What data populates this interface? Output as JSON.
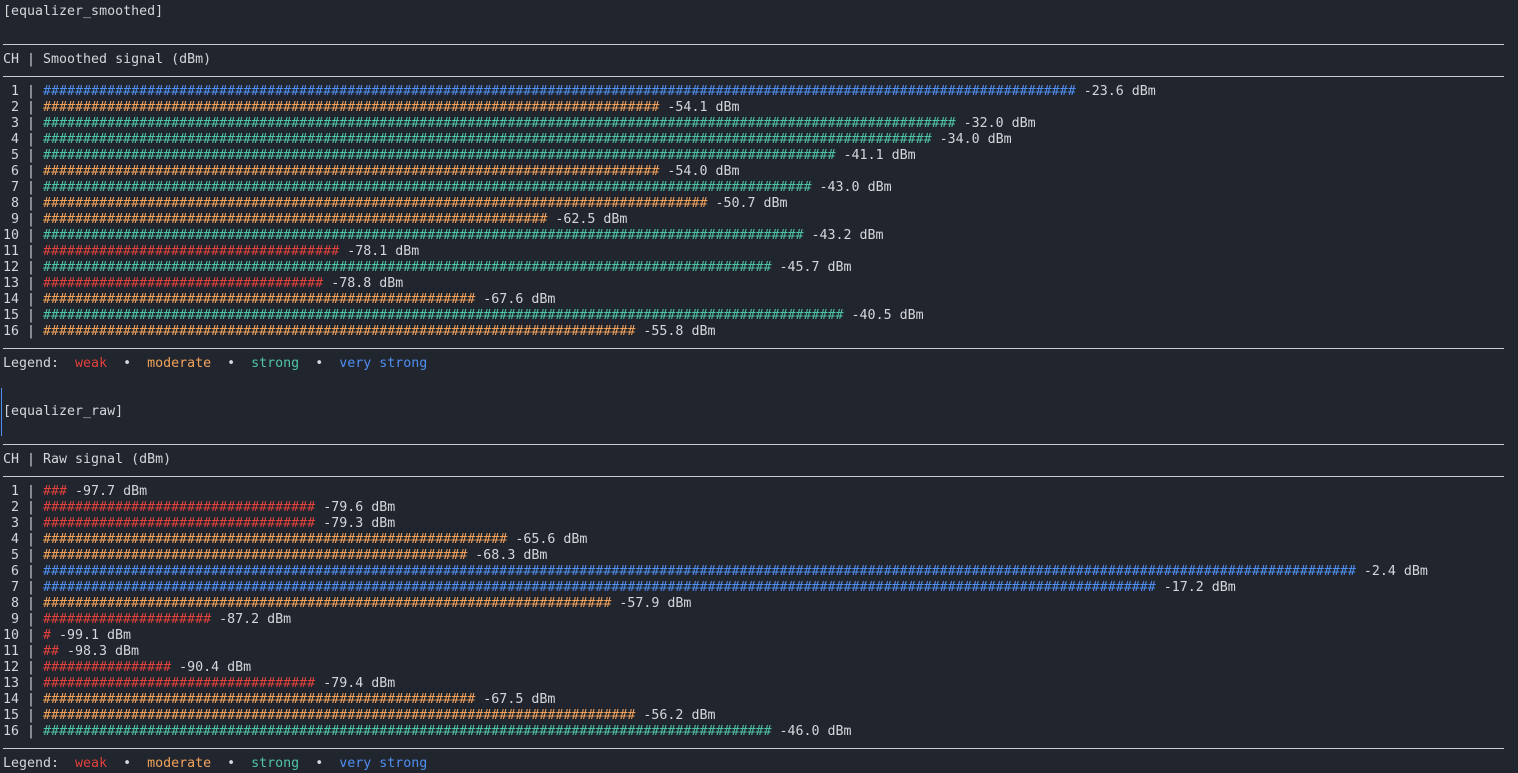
{
  "column_separator": "|",
  "sections": [
    {
      "tag": "[equalizer_smoothed]",
      "header": {
        "ch": "CH",
        "signal": "Smoothed signal (dBm)"
      },
      "channels": [
        1,
        2,
        3,
        4,
        5,
        6,
        7,
        8,
        9,
        10,
        11,
        12,
        13,
        14,
        15,
        16
      ],
      "values": [
        -23.6,
        -54.1,
        -32.0,
        -34.0,
        -41.1,
        -54.0,
        -43.0,
        -50.7,
        -62.5,
        -43.2,
        -78.1,
        -45.7,
        -78.8,
        -67.6,
        -40.5,
        -55.8
      ],
      "value_labels": [
        "-23.6 dBm",
        "-54.1 dBm",
        "-32.0 dBm",
        "-34.0 dBm",
        "-41.1 dBm",
        "-54.0 dBm",
        "-43.0 dBm",
        "-50.7 dBm",
        "-62.5 dBm",
        "-43.2 dBm",
        "-78.1 dBm",
        "-45.7 dBm",
        "-78.8 dBm",
        "-67.6 dBm",
        "-40.5 dBm",
        "-55.8 dBm"
      ],
      "legend": {
        "label": "Legend:",
        "separator": "•",
        "items": [
          {
            "name": "weak",
            "color": "#e0403c"
          },
          {
            "name": "moderate",
            "color": "#f2a25a"
          },
          {
            "name": "strong",
            "color": "#4fc4a4"
          },
          {
            "name": "very strong",
            "color": "#4f8ef2"
          }
        ]
      }
    },
    {
      "tag": "[equalizer_raw]",
      "header": {
        "ch": "CH",
        "signal": "Raw signal (dBm)"
      },
      "channels": [
        1,
        2,
        3,
        4,
        5,
        6,
        7,
        8,
        9,
        10,
        11,
        12,
        13,
        14,
        15,
        16
      ],
      "values": [
        -97.7,
        -79.6,
        -79.3,
        -65.6,
        -68.3,
        -2.4,
        -17.2,
        -57.9,
        -87.2,
        -99.1,
        -98.3,
        -90.4,
        -79.4,
        -67.5,
        -56.2,
        -46.0
      ],
      "value_labels": [
        "-97.7 dBm",
        "-79.6 dBm",
        "-79.3 dBm",
        "-65.6 dBm",
        "-68.3 dBm",
        "-2.4 dBm",
        "-17.2 dBm",
        "-57.9 dBm",
        "-87.2 dBm",
        "-99.1 dBm",
        "-98.3 dBm",
        "-90.4 dBm",
        "-79.4 dBm",
        "-67.5 dBm",
        "-56.2 dBm",
        "-46.0 dBm"
      ],
      "legend": {
        "label": "Legend:",
        "separator": "•",
        "items": [
          {
            "name": "weak",
            "color": "#e0403c"
          },
          {
            "name": "moderate",
            "color": "#f2a25a"
          },
          {
            "name": "strong",
            "color": "#4fc4a4"
          },
          {
            "name": "very strong",
            "color": "#4f8ef2"
          }
        ]
      }
    }
  ]
}
